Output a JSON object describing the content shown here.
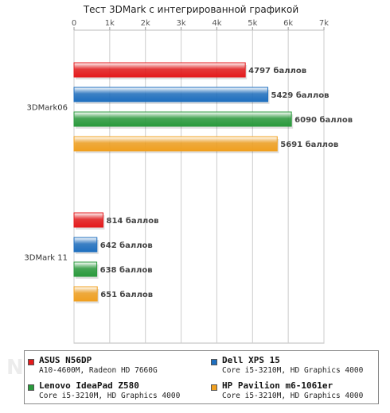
{
  "chart_data": {
    "type": "bar",
    "orientation": "horizontal",
    "title": "Тест 3DMark с интегрированной графикой",
    "xlabel": "",
    "ylabel": "",
    "xlim": [
      0,
      7000
    ],
    "x_ticks": [
      0,
      1000,
      2000,
      3000,
      4000,
      5000,
      6000,
      7000
    ],
    "x_tick_labels": [
      "0",
      "1k",
      "2k",
      "3k",
      "4k",
      "5k",
      "6k",
      "7k"
    ],
    "grid": true,
    "legend_position": "bottom",
    "categories": [
      "3DMark06",
      "3DMark 11"
    ],
    "value_suffix": " баллов",
    "series": [
      {
        "name": "ASUS N56DP",
        "description": "A10-4600M, Radeon HD 7660G",
        "color": "#e41a1c",
        "values": [
          4797,
          814
        ]
      },
      {
        "name": "Dell XPS 15",
        "description": "Core i5-3210M, HD Graphics 4000",
        "color": "#1f6fbf",
        "values": [
          5429,
          642
        ]
      },
      {
        "name": "Lenovo IdeaPad Z580",
        "description": "Core i5-3210M, HD Graphics 4000",
        "color": "#2a9a3c",
        "values": [
          6090,
          638
        ]
      },
      {
        "name": "HP Pavilion m6-1061er",
        "description": "Core i5-3210M, HD Graphics 4000",
        "color": "#f0a020",
        "values": [
          5691,
          651
        ]
      }
    ]
  },
  "watermark": "NOTEBOOK"
}
